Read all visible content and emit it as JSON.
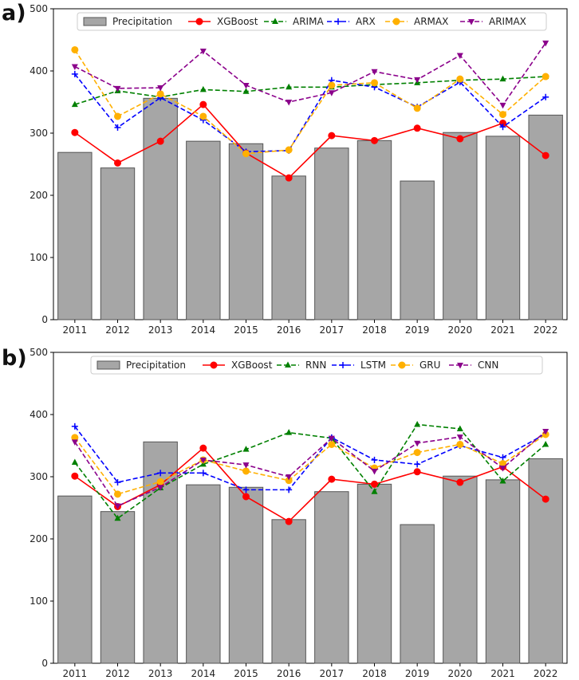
{
  "chart_data": [
    {
      "type": "bar+line",
      "panel_label": "a)",
      "categories": [
        "2011",
        "2012",
        "2013",
        "2014",
        "2015",
        "2016",
        "2017",
        "2018",
        "2019",
        "2020",
        "2021",
        "2022"
      ],
      "ylim": [
        0,
        500
      ],
      "yticks": [
        0,
        100,
        200,
        300,
        400,
        500
      ],
      "bars": {
        "name": "Precipitation",
        "color": "#a6a6a6",
        "values": [
          269,
          244,
          356,
          287,
          283,
          231,
          276,
          288,
          223,
          301,
          295,
          329
        ]
      },
      "series": [
        {
          "name": "XGBoost",
          "color": "#ff0000",
          "dash": "solid",
          "marker": "circle",
          "values": [
            301,
            252,
            287,
            346,
            268,
            228,
            296,
            288,
            308,
            291,
            316,
            264
          ]
        },
        {
          "name": "ARIMA",
          "color": "#008000",
          "dash": "dashed",
          "marker": "triangle-up",
          "values": [
            346,
            368,
            358,
            370,
            367,
            374,
            374,
            378,
            381,
            385,
            387,
            391
          ]
        },
        {
          "name": "ARX",
          "color": "#0000ff",
          "dash": "dashed",
          "marker": "plus",
          "values": [
            395,
            309,
            357,
            321,
            270,
            272,
            385,
            374,
            342,
            382,
            310,
            358
          ]
        },
        {
          "name": "ARMAX",
          "color": "#ffb000",
          "dash": "dashed",
          "marker": "circle",
          "values": [
            434,
            327,
            363,
            327,
            267,
            273,
            377,
            381,
            340,
            387,
            330,
            391
          ]
        },
        {
          "name": "ARIMAX",
          "color": "#8b008b",
          "dash": "dashed",
          "marker": "triangle-down",
          "values": [
            407,
            372,
            373,
            432,
            377,
            350,
            365,
            399,
            386,
            425,
            345,
            445
          ]
        }
      ]
    },
    {
      "type": "bar+line",
      "panel_label": "b)",
      "categories": [
        "2011",
        "2012",
        "2013",
        "2014",
        "2015",
        "2016",
        "2017",
        "2018",
        "2019",
        "2020",
        "2021",
        "2022"
      ],
      "ylim": [
        0,
        500
      ],
      "yticks": [
        0,
        100,
        200,
        300,
        400,
        500
      ],
      "bars": {
        "name": "Precipitation",
        "color": "#a6a6a6",
        "values": [
          269,
          244,
          356,
          287,
          283,
          231,
          276,
          288,
          223,
          301,
          295,
          329
        ]
      },
      "series": [
        {
          "name": "XGBoost",
          "color": "#ff0000",
          "dash": "solid",
          "marker": "circle",
          "values": [
            301,
            252,
            287,
            346,
            268,
            228,
            296,
            288,
            308,
            291,
            316,
            264
          ]
        },
        {
          "name": "RNN",
          "color": "#008000",
          "dash": "dashed",
          "marker": "triangle-up",
          "values": [
            323,
            233,
            282,
            320,
            344,
            371,
            362,
            276,
            384,
            377,
            293,
            352
          ]
        },
        {
          "name": "LSTM",
          "color": "#0000ff",
          "dash": "dashed",
          "marker": "plus",
          "values": [
            381,
            291,
            306,
            306,
            279,
            279,
            363,
            327,
            320,
            350,
            331,
            369
          ]
        },
        {
          "name": "GRU",
          "color": "#ffb000",
          "dash": "dashed",
          "marker": "circle",
          "values": [
            363,
            272,
            292,
            327,
            309,
            294,
            352,
            314,
            339,
            352,
            321,
            368
          ]
        },
        {
          "name": "CNN",
          "color": "#8b008b",
          "dash": "dashed",
          "marker": "triangle-down",
          "values": [
            356,
            253,
            283,
            327,
            319,
            300,
            362,
            309,
            354,
            364,
            314,
            373
          ]
        }
      ]
    }
  ]
}
